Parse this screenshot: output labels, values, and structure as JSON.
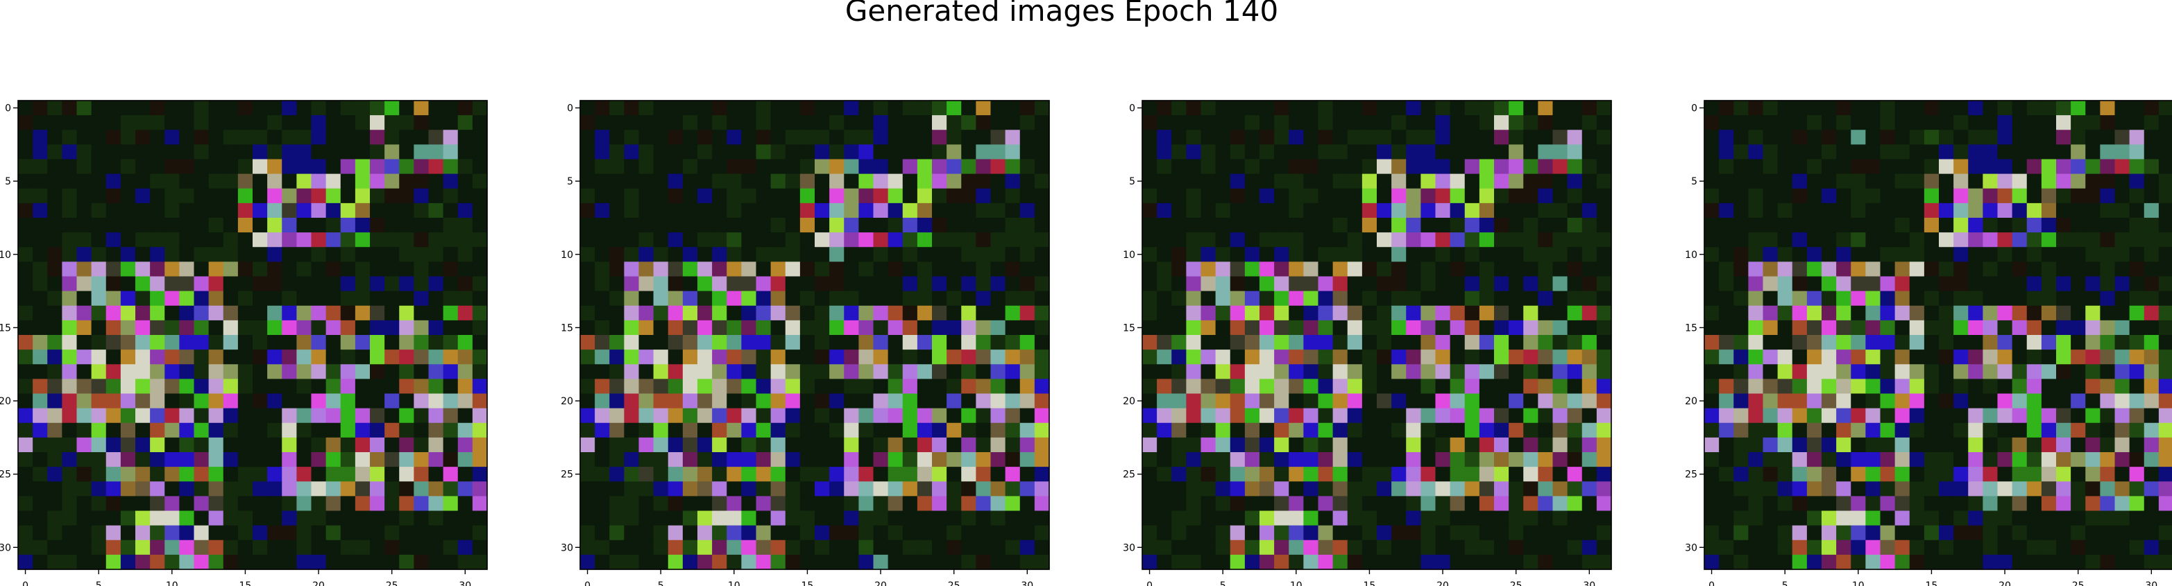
{
  "chart_data": {
    "type": "heatmap",
    "title": "Generated images Epoch 140",
    "image_shape": [
      32,
      32
    ],
    "color_channels": "rgb",
    "xlim": [
      -0.5,
      31.5
    ],
    "ylim": [
      31.5,
      -0.5
    ],
    "x_ticks": [
      0,
      5,
      10,
      15,
      20,
      25,
      30
    ],
    "y_ticks": [
      0,
      5,
      10,
      15,
      20,
      25,
      30
    ],
    "panels": [
      {
        "name": "",
        "variant": 0
      },
      {
        "name": "",
        "variant": 1
      },
      {
        "name": "",
        "variant": 2
      },
      {
        "name": "",
        "variant": 3
      }
    ],
    "bright_regions": [
      {
        "row": [
          11,
          21
        ],
        "col": [
          3,
          14
        ],
        "strength": 0.95
      },
      {
        "row": [
          4,
          9
        ],
        "col": [
          15,
          23
        ],
        "strength": 0.85
      },
      {
        "row": [
          14,
          27
        ],
        "col": [
          17,
          31
        ],
        "strength": 0.8
      },
      {
        "row": [
          22,
          31
        ],
        "col": [
          6,
          13
        ],
        "strength": 0.85
      },
      {
        "row": [
          0,
          5
        ],
        "col": [
          24,
          29
        ],
        "strength": 0.7
      },
      {
        "row": [
          16,
          23
        ],
        "col": [
          0,
          6
        ],
        "strength": 0.75
      }
    ],
    "palette": [
      "#0b1a0b",
      "#132b0c",
      "#1e4a12",
      "#2c7a17",
      "#32b51a",
      "#6fd62a",
      "#a8e23a",
      "#6a5a3a",
      "#8e6d2c",
      "#b9862a",
      "#a64b2a",
      "#b0243a",
      "#6b1a5a",
      "#8d3ab0",
      "#b07ae0",
      "#c19bd8",
      "#e04ae0",
      "#b95bdc",
      "#4a43c8",
      "#2412c6",
      "#0c0c7a",
      "#5a9e8a",
      "#7fb7b0",
      "#b6b39a",
      "#d7d7c8",
      "#8a9a5a",
      "#3a3a2a",
      "#1b120a"
    ]
  }
}
